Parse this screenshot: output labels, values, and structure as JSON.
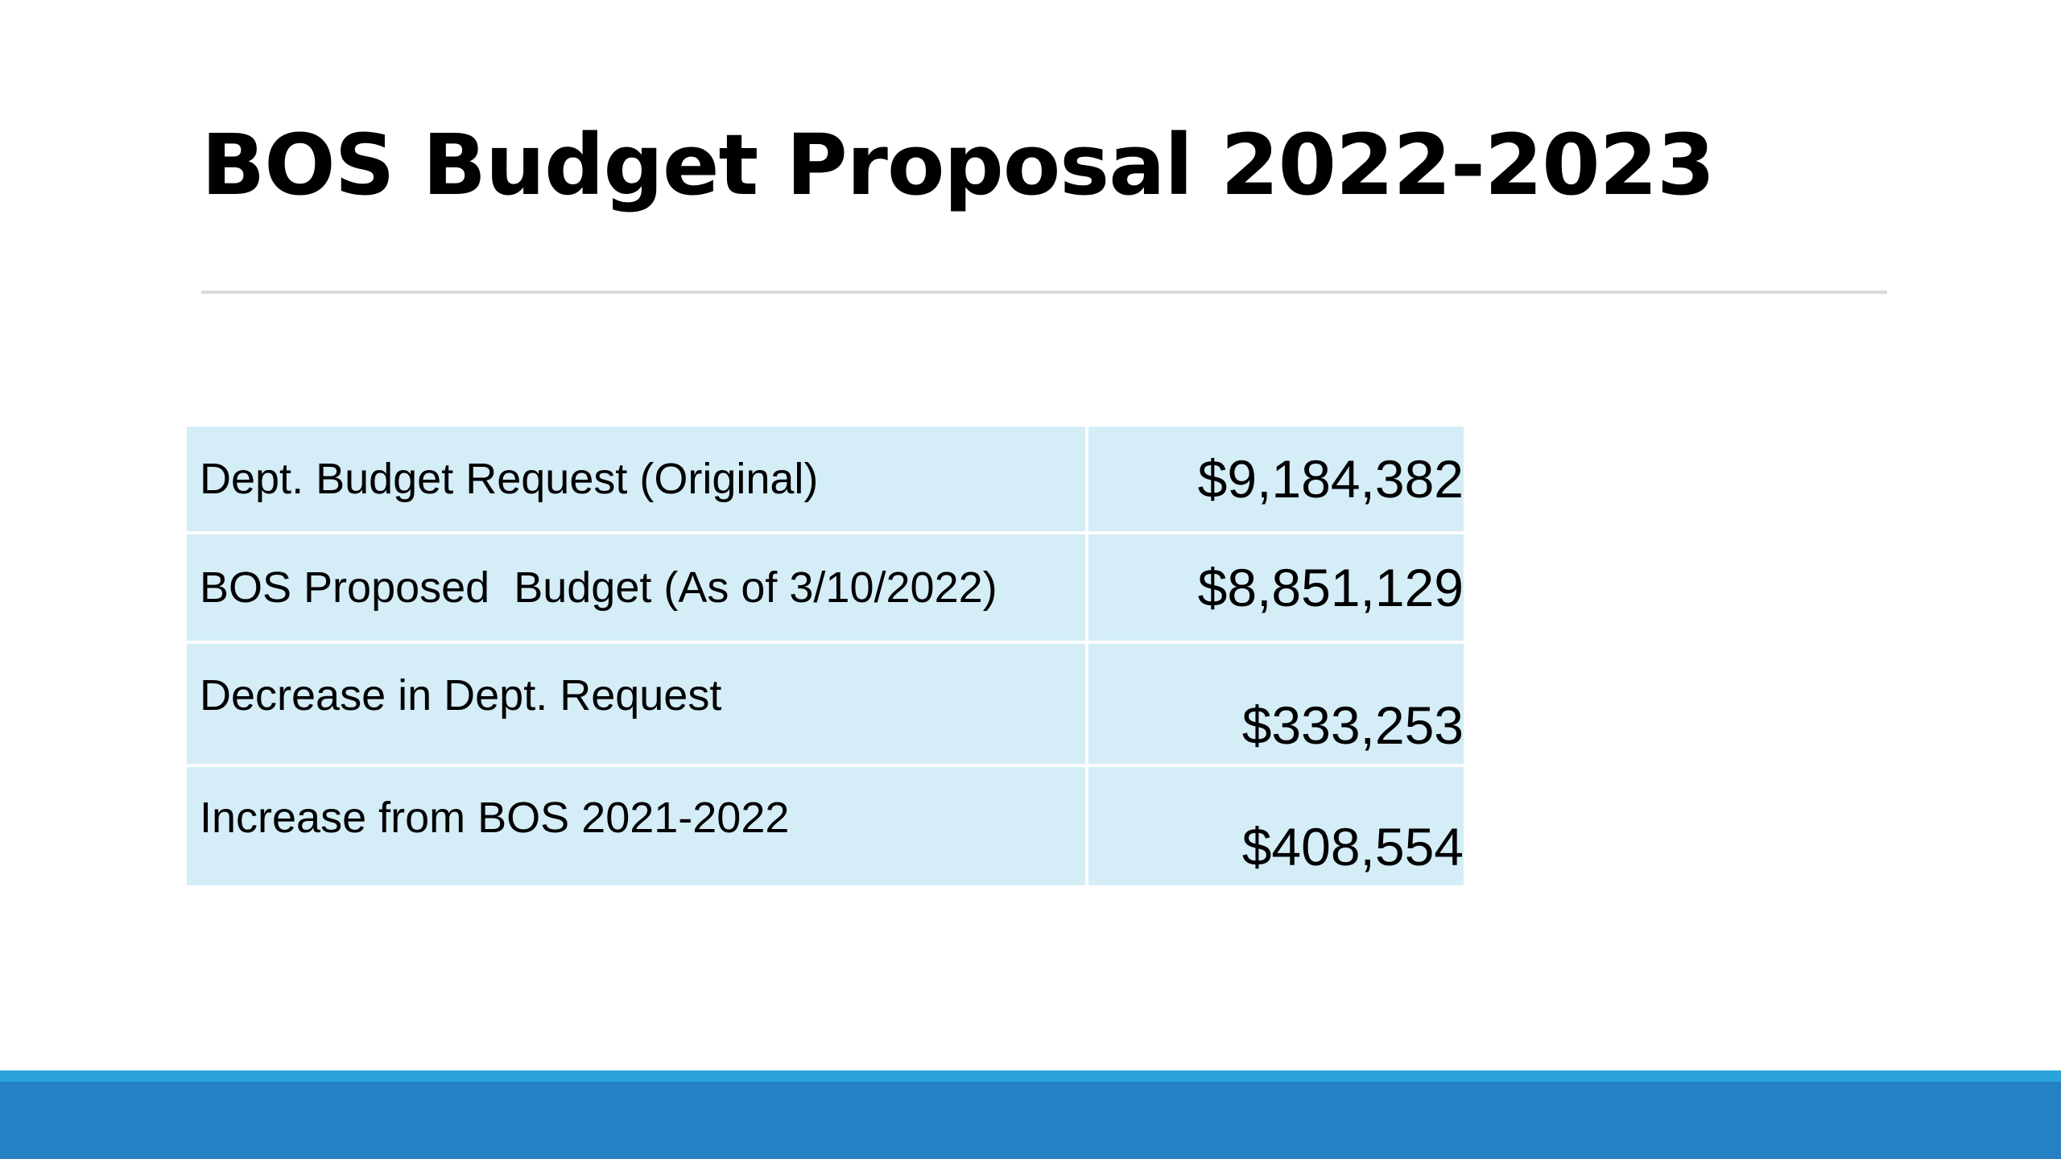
{
  "slide": {
    "title": "BOS Budget Proposal 2022-2023"
  },
  "budget_table": {
    "rows": [
      {
        "label": "Dept. Budget Request (Original)",
        "value": "$9,184,382"
      },
      {
        "label": "BOS Proposed  Budget (As of 3/10/2022)",
        "value": "$8,851,129"
      },
      {
        "label": "Decrease in Dept. Request",
        "value": "$333,253"
      },
      {
        "label": "Increase from BOS 2021-2022",
        "value": "$408,554"
      }
    ]
  },
  "colors": {
    "table_fill": "#d4edf7",
    "footer_accent": "#29a3d9",
    "footer_bar": "#2580c4",
    "divider": "#d9d9d9"
  }
}
